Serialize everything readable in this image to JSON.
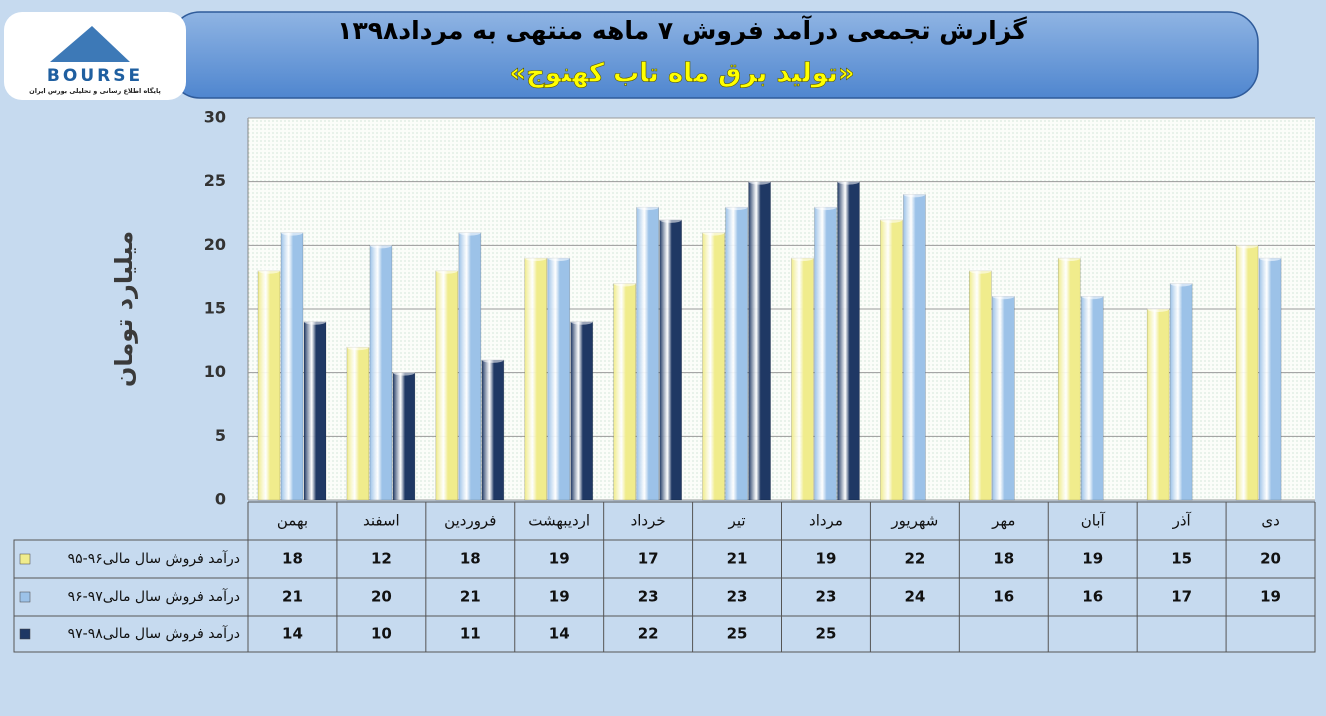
{
  "logo": {
    "text": "BOURSE",
    "subtitle": "پایگاه اطلاع رسانی و تحلیلی بورس ایران"
  },
  "chart_data": {
    "type": "bar",
    "title": "گزارش تجمعی درآمد فروش ۷ ماهه منتهی به مرداد۱۳۹۸",
    "subtitle": "«تولید برق ماه تاب کهنوج»",
    "y_label": "میلیارد تومان",
    "categories": [
      "بهمن",
      "اسفند",
      "فروردین",
      "اردیبهشت",
      "خرداد",
      "تیر",
      "مرداد",
      "شهریور",
      "مهر",
      "آبان",
      "آذر",
      "دی"
    ],
    "series": [
      {
        "name": "درآمد فروش سال مالی۹۶-۹۵",
        "color": "#f0ec8c",
        "values": [
          18,
          12,
          18,
          19,
          17,
          21,
          19,
          22,
          18,
          19,
          15,
          20
        ]
      },
      {
        "name": "درآمد فروش سال مالی۹۷-۹۶",
        "color": "#9cc2e8",
        "values": [
          21,
          20,
          21,
          19,
          23,
          23,
          23,
          24,
          16,
          16,
          17,
          19
        ]
      },
      {
        "name": "درآمد فروش سال مالی۹۸-۹۷",
        "color": "#1f3864",
        "values": [
          14,
          10,
          11,
          14,
          22,
          25,
          25,
          null,
          null,
          null,
          null,
          null
        ]
      }
    ],
    "ylim": [
      0,
      30
    ],
    "yticks": [
      0,
      5,
      10,
      15,
      20,
      25,
      30
    ],
    "grid": true
  }
}
